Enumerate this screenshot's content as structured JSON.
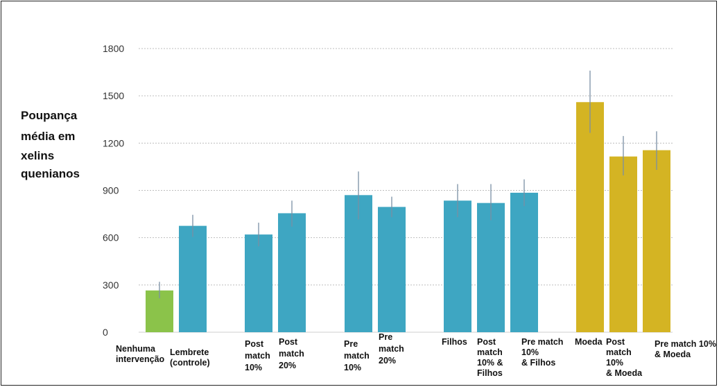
{
  "chart_data": {
    "type": "bar",
    "ylabel_lines": [
      "Poupança",
      "média em",
      "xelins",
      "quenianos"
    ],
    "yticks": [
      0,
      300,
      600,
      900,
      1200,
      1500,
      1800
    ],
    "ylim": [
      0,
      1800
    ],
    "grid": true,
    "colors": {
      "green": "#8bc34a",
      "teal": "#3ea6c2",
      "gold": "#d4b423",
      "error": "#7a8fa3",
      "grid": "#bdbdbd"
    },
    "bars": [
      {
        "label_lines": [
          "Nenhuma",
          "intervenção"
        ],
        "value": 265,
        "err_low": 215,
        "err_high": 320,
        "color": "green"
      },
      {
        "label_lines": [
          "Lembrete",
          "(controle)"
        ],
        "value": 675,
        "err_low": 605,
        "err_high": 745,
        "color": "teal"
      },
      {
        "label_lines": [
          "Post",
          "match",
          "10%"
        ],
        "value": 620,
        "err_low": 545,
        "err_high": 695,
        "color": "teal"
      },
      {
        "label_lines": [
          "Post",
          "match",
          "20%"
        ],
        "value": 755,
        "err_low": 670,
        "err_high": 835,
        "color": "teal"
      },
      {
        "label_lines": [
          "Pre",
          "match",
          "10%"
        ],
        "value": 870,
        "err_low": 715,
        "err_high": 1020,
        "color": "teal"
      },
      {
        "label_lines": [
          "Pre",
          "match",
          "20%"
        ],
        "value": 795,
        "err_low": 730,
        "err_high": 860,
        "color": "teal"
      },
      {
        "label_lines": [
          "Filhos"
        ],
        "value": 835,
        "err_low": 730,
        "err_high": 940,
        "color": "teal"
      },
      {
        "label_lines": [
          "Post",
          "match",
          "10% &",
          "Filhos"
        ],
        "value": 820,
        "err_low": 710,
        "err_high": 940,
        "color": "teal"
      },
      {
        "label_lines": [
          "Pre match",
          "10%",
          "& Filhos"
        ],
        "value": 885,
        "err_low": 800,
        "err_high": 970,
        "color": "teal"
      },
      {
        "label_lines": [
          "Moeda"
        ],
        "value": 1460,
        "err_low": 1265,
        "err_high": 1660,
        "color": "gold"
      },
      {
        "label_lines": [
          "Post",
          "match",
          "10%",
          "& Moeda"
        ],
        "value": 1115,
        "err_low": 995,
        "err_high": 1245,
        "color": "gold"
      },
      {
        "label_lines": [
          "Pre match 10%",
          "& Moeda"
        ],
        "value": 1155,
        "err_low": 1030,
        "err_high": 1275,
        "color": "gold"
      }
    ]
  }
}
